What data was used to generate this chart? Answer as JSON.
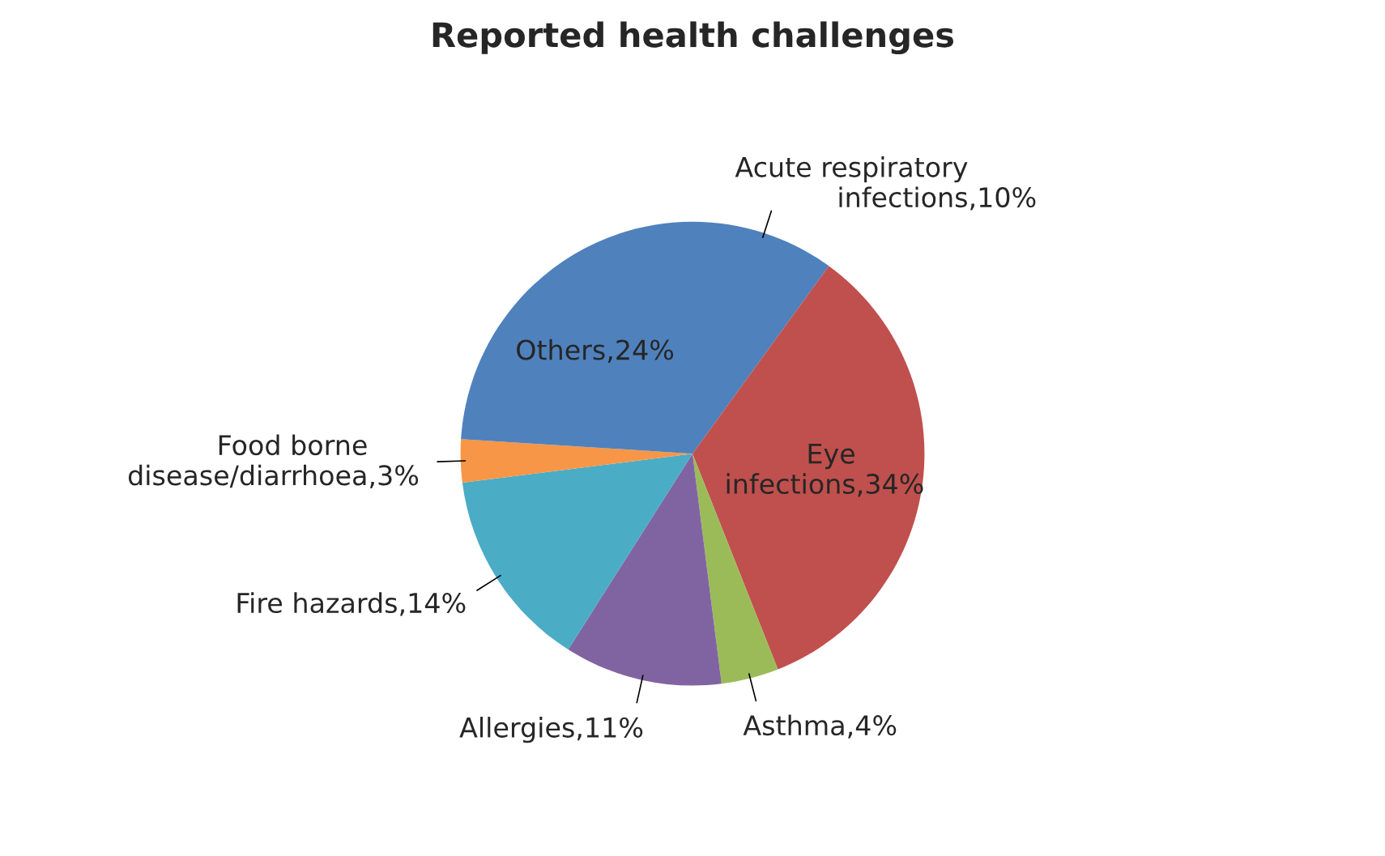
{
  "chart_data": {
    "type": "pie",
    "title": "Reported health challenges",
    "categories": [
      "Acute respiratory infections",
      "Eye infections",
      "Asthma",
      "Allergies",
      "Fire hazards",
      "Food borne disease/diarrhoea",
      "Others"
    ],
    "values": [
      10,
      34,
      4,
      11,
      14,
      3,
      24
    ],
    "colors": [
      "#4f81bd",
      "#c0504d",
      "#9bbb59",
      "#8064a2",
      "#4bacc6",
      "#f79646",
      "#4f81bd"
    ],
    "value_labels": [
      ",10%",
      ",34%",
      ",4%",
      ",11%",
      ",14%",
      ",3%",
      ",24%"
    ],
    "legend": false
  }
}
